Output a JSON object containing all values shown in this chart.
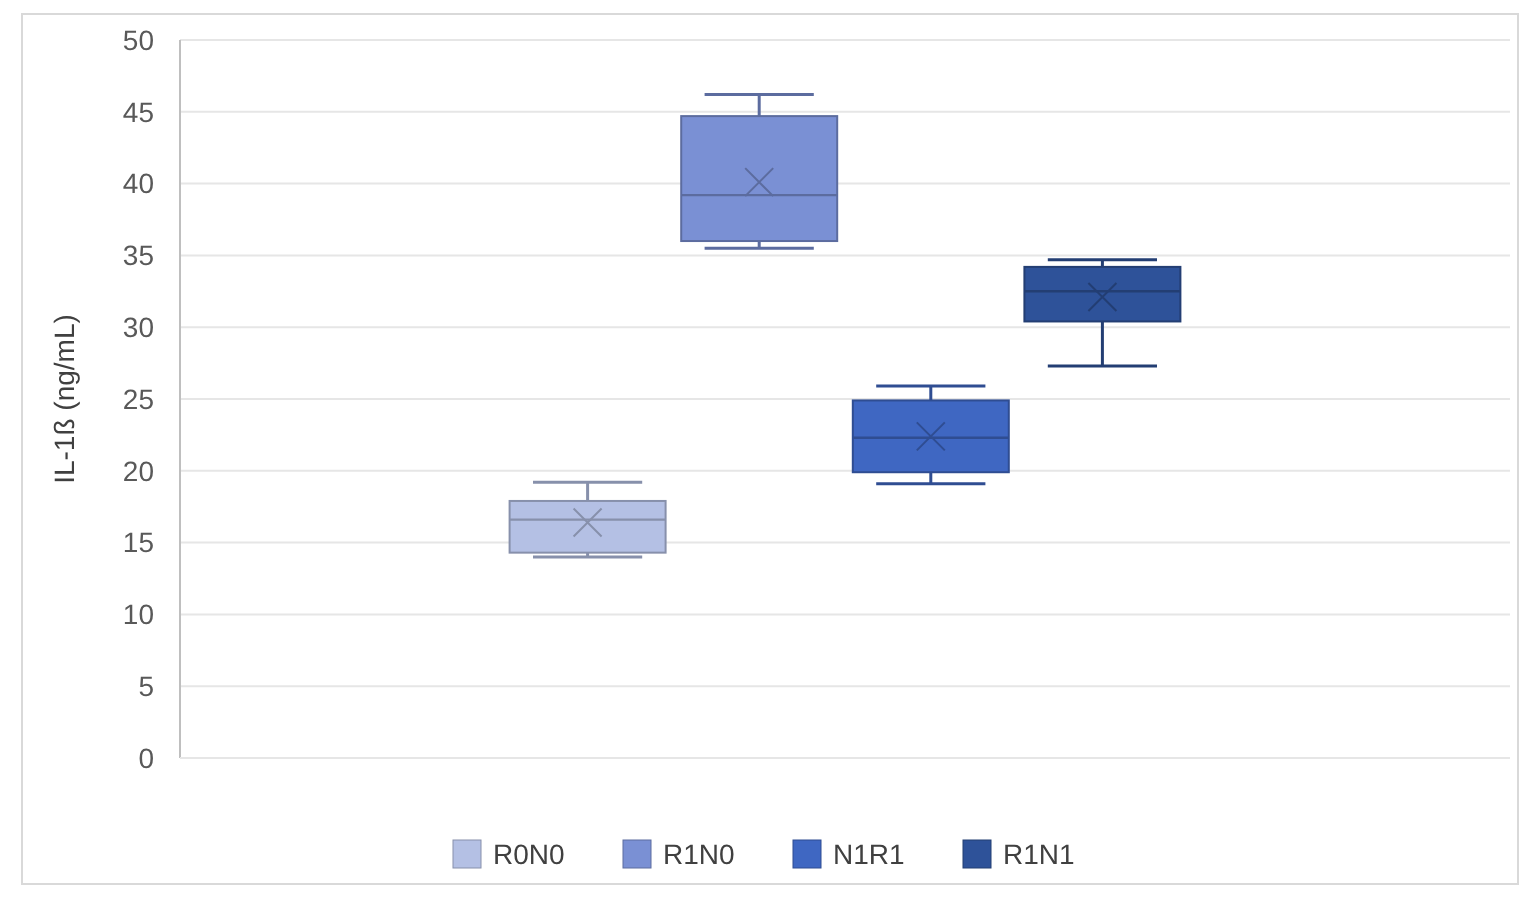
{
  "chart_data": {
    "type": "box",
    "ylabel": "IL-1ß  (ng/mL)",
    "categories": [
      null
    ],
    "ylim": [
      0,
      50
    ],
    "yticks": [
      0,
      5,
      10,
      15,
      20,
      25,
      30,
      35,
      40,
      45,
      50
    ],
    "grid": "y",
    "legend": "bottom",
    "series": [
      {
        "name": "R0N0",
        "color": "#b4c0e4",
        "boxes": [
          {
            "low": 14.0,
            "q1": 14.3,
            "median": 16.6,
            "q3": 17.9,
            "high": 19.2,
            "mean": 16.4
          }
        ]
      },
      {
        "name": "R1N0",
        "color": "#7a90d4",
        "boxes": [
          {
            "low": 35.5,
            "q1": 36.0,
            "median": 39.2,
            "q3": 44.7,
            "high": 46.2,
            "mean": 40.1
          }
        ]
      },
      {
        "name": "N1R1",
        "color": "#3f67c2",
        "boxes": [
          {
            "low": 19.1,
            "q1": 19.9,
            "median": 22.3,
            "q3": 24.9,
            "high": 25.9,
            "mean": 22.4
          }
        ]
      },
      {
        "name": "R1N1",
        "color": "#2e5299",
        "boxes": [
          {
            "low": 27.3,
            "q1": 30.4,
            "median": 32.5,
            "q3": 34.2,
            "high": 34.7,
            "mean": 32.1
          }
        ]
      }
    ]
  }
}
